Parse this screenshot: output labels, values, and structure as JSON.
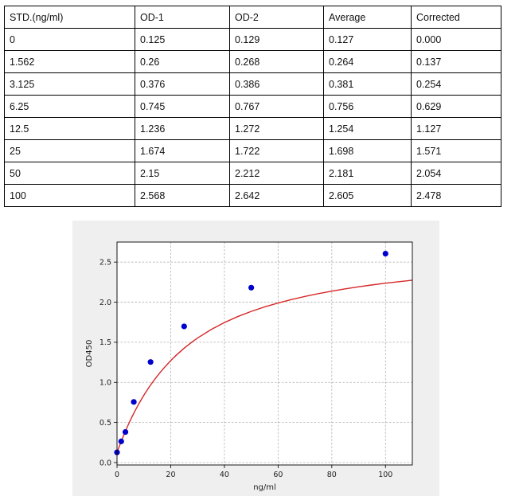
{
  "table": {
    "headers": [
      "STD.(ng/ml)",
      "OD-1",
      "OD-2",
      "Average",
      "Corrected"
    ],
    "rows": [
      [
        "0",
        "0.125",
        "0.129",
        "0.127",
        "0.000"
      ],
      [
        "1.562",
        "0.26",
        "0.268",
        "0.264",
        "0.137"
      ],
      [
        "3.125",
        "0.376",
        "0.386",
        "0.381",
        "0.254"
      ],
      [
        "6.25",
        "0.745",
        "0.767",
        "0.756",
        "0.629"
      ],
      [
        "12.5",
        "1.236",
        "1.272",
        "1.254",
        "1.127"
      ],
      [
        "25",
        "1.674",
        "1.722",
        "1.698",
        "1.571"
      ],
      [
        "50",
        "2.15",
        "2.212",
        "2.181",
        "2.054"
      ],
      [
        "100",
        "2.568",
        "2.642",
        "2.605",
        "2.478"
      ]
    ]
  },
  "chart_data": {
    "type": "scatter",
    "xlabel": "ng/ml",
    "ylabel": "OD450",
    "xlim": [
      0,
      110
    ],
    "ylim": [
      -0.03,
      2.75
    ],
    "xticks": [
      0,
      20,
      40,
      60,
      80,
      100
    ],
    "yticks": [
      0.0,
      0.5,
      1.0,
      1.5,
      2.0,
      2.5
    ],
    "grid": true,
    "points": {
      "x": [
        0,
        1.562,
        3.125,
        6.25,
        12.5,
        25,
        50,
        100
      ],
      "y": [
        0.127,
        0.264,
        0.381,
        0.756,
        1.254,
        1.698,
        2.181,
        2.605
      ],
      "color": "#0000cc"
    },
    "fit_curve": {
      "x": [
        0,
        1,
        2,
        3,
        4,
        5,
        6,
        8,
        10,
        12,
        14,
        16,
        18,
        20,
        22,
        25,
        28,
        30,
        35,
        40,
        45,
        50,
        55,
        60,
        65,
        70,
        75,
        80,
        85,
        90,
        95,
        100,
        105,
        110
      ],
      "y": [
        0.125,
        0.215,
        0.3,
        0.381,
        0.458,
        0.53,
        0.599,
        0.726,
        0.84,
        0.943,
        1.036,
        1.121,
        1.199,
        1.271,
        1.337,
        1.426,
        1.505,
        1.553,
        1.658,
        1.746,
        1.821,
        1.885,
        1.941,
        1.99,
        2.033,
        2.072,
        2.107,
        2.138,
        2.166,
        2.192,
        2.215,
        2.237,
        2.256,
        2.274
      ],
      "color": "#d62728"
    }
  }
}
